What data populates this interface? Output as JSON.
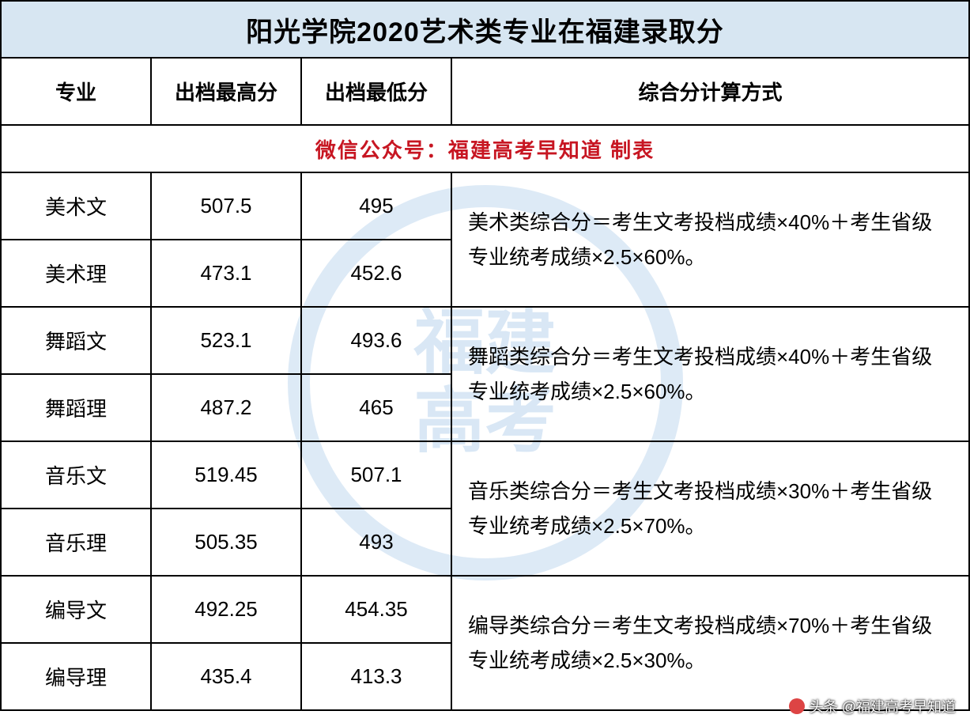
{
  "title": "阳光学院2020艺术类专业在福建录取分",
  "headers": {
    "major": "专业",
    "high": "出档最高分",
    "low": "出档最低分",
    "formula": "综合分计算方式"
  },
  "notice": "微信公众号：福建高考早知道  制表",
  "watermark": {
    "line1": "福建",
    "line2": "高考"
  },
  "groups": [
    {
      "rows": [
        {
          "major": "美术文",
          "high": "507.5",
          "low": "495"
        },
        {
          "major": "美术理",
          "high": "473.1",
          "low": "452.6"
        }
      ],
      "formula": "美术类综合分＝考生文考投档成绩×40%＋考生省级专业统考成绩×2.5×60%。"
    },
    {
      "rows": [
        {
          "major": "舞蹈文",
          "high": "523.1",
          "low": "493.6"
        },
        {
          "major": "舞蹈理",
          "high": "487.2",
          "low": "465"
        }
      ],
      "formula": "舞蹈类综合分＝考生文考投档成绩×40%＋考生省级专业统考成绩×2.5×60%。"
    },
    {
      "rows": [
        {
          "major": "音乐文",
          "high": "519.45",
          "low": "507.1"
        },
        {
          "major": "音乐理",
          "high": "505.35",
          "low": "493"
        }
      ],
      "formula": "音乐类综合分＝考生文考投档成绩×30%＋考生省级专业统考成绩×2.5×70%。"
    },
    {
      "rows": [
        {
          "major": "编导文",
          "high": "492.25",
          "low": "454.35"
        },
        {
          "major": "编导理",
          "high": "435.4",
          "low": "413.3"
        }
      ],
      "formula": "编导类综合分＝考生文考投档成绩×70%＋考生省级专业统考成绩×2.5×30%。"
    }
  ],
  "footer": "头条 @福建高考早知道",
  "colors": {
    "title_bg": "#d7e6f2",
    "border": "#000000",
    "notice_text": "#c71622",
    "text": "#000000",
    "watermark": "rgba(120,170,220,0.25)"
  },
  "fonts": {
    "title_size": 34,
    "header_size": 26,
    "cell_size": 26,
    "formula_size": 24
  }
}
